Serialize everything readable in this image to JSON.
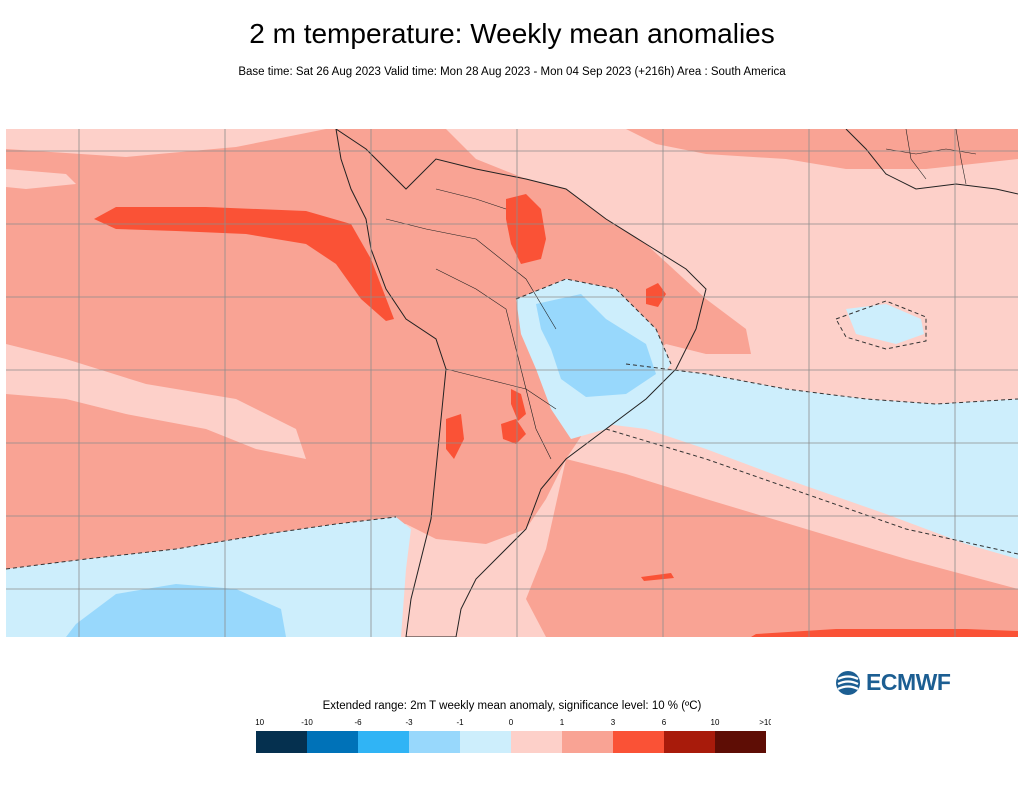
{
  "title": "2 m temperature: Weekly mean anomalies",
  "subtitle": "Base time: Sat 26 Aug 2023 Valid time: Mon 28 Aug 2023 - Mon 04 Sep 2023 (+216h) Area : South America",
  "logo_text": "ECMWF",
  "legend": {
    "title": "Extended range: 2m T weekly mean anomaly, significance level: 10 % (ºC)",
    "ticks": [
      "<-10",
      "-10",
      "-6",
      "-3",
      "-1",
      "0",
      "1",
      "3",
      "6",
      "10",
      ">10"
    ],
    "colors": [
      "#05304f",
      "#0072b8",
      "#30b4f5",
      "#98d8fc",
      "#cdeefc",
      "#fdd0c9",
      "#f9a394",
      "#fa5236",
      "#a81b0b",
      "#5e0d05"
    ]
  },
  "colors": {
    "ocean_base": "#fdd0c9",
    "warm_1_3": "#f9a394",
    "warm_3_6": "#fa5236",
    "cool_0_1": "#cdeefc",
    "cool_1_3": "#98d8fc",
    "land_outline": "#222222",
    "grid": "#8c8c8c"
  }
}
